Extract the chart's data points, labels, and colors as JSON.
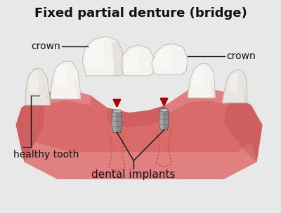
{
  "title": "Fixed partial denture (bridge)",
  "title_fontsize": 13,
  "title_fontweight": "bold",
  "bg_color": "#e8e8e8",
  "gum_base": "#cc5555",
  "gum_mid": "#d96b6b",
  "gum_light": "#e08080",
  "gum_highlight": "#e89090",
  "gum_dark": "#b84040",
  "tooth_white": "#f5f3f0",
  "tooth_off": "#e8e5e0",
  "tooth_shadow": "#c0bcb5",
  "tooth_dark": "#b0aca5",
  "implant_mid": "#8a8a8a",
  "implant_dark": "#555555",
  "implant_light": "#bbbbbb",
  "implant_top": "#999999",
  "arrow_color": "#aa0000",
  "label_color": "#111111",
  "line_color": "#111111",
  "dotted_color": "#cc4444",
  "label_fontsize": 10,
  "labels": {
    "crown_left": "crown",
    "crown_right": "crown",
    "healthy_tooth": "healthy tooth",
    "dental_implants": "dental implants"
  }
}
